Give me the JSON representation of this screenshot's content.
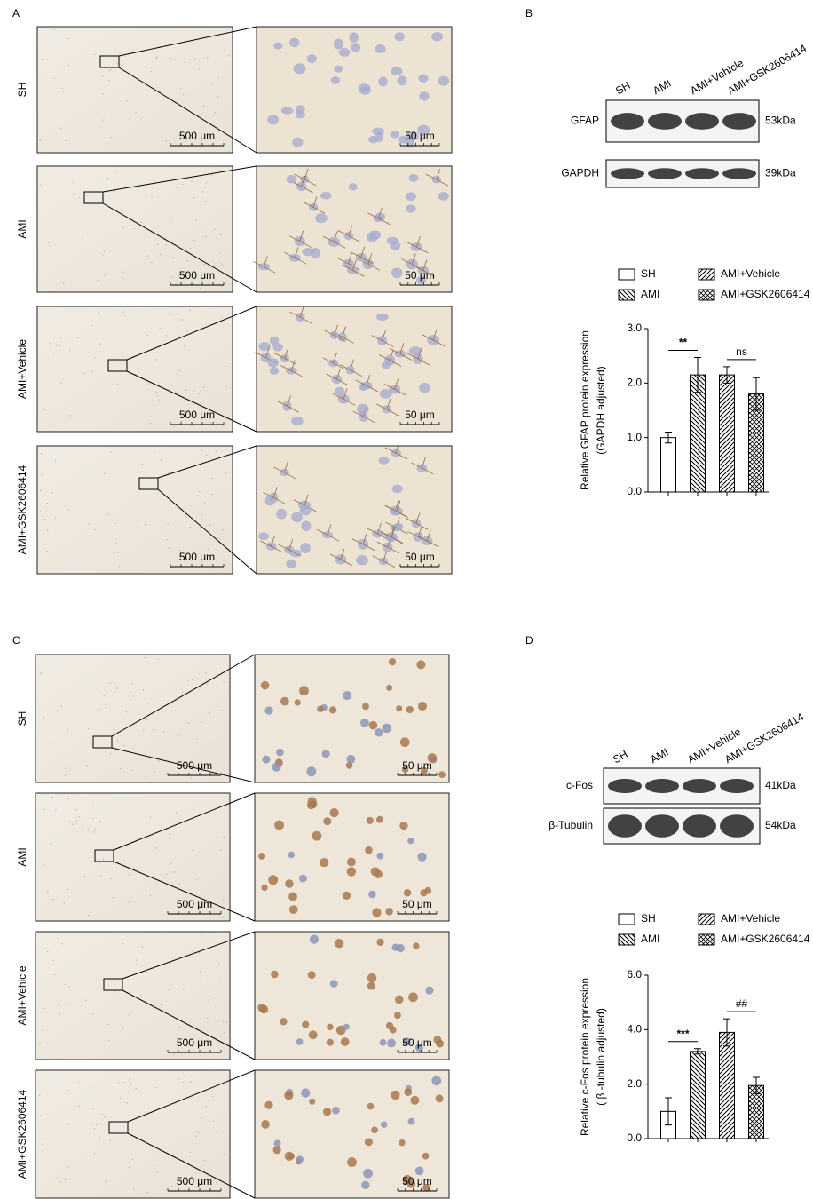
{
  "panel_labels": [
    "A",
    "B",
    "C",
    "D"
  ],
  "histology": [
    {
      "rows": [
        "SH",
        "AMI",
        "AMI+Vehicle",
        "AMI+GSK2606414"
      ],
      "low_scale": "500 μm",
      "high_scale": "50 μm"
    },
    {
      "rows": [
        "SH",
        "AMI",
        "AMI+Vehicle",
        "AMI+GSK2606414"
      ],
      "low_scale": "500 μm",
      "high_scale": "50 μm"
    }
  ],
  "blots": [
    {
      "lanes": [
        "SH",
        "AMI",
        "AMI+Vehicle",
        "AMI+GSK2606414"
      ],
      "bands": [
        {
          "name": "GFAP",
          "size": "53kDa"
        },
        {
          "name": "GAPDH",
          "size": "39kDa"
        }
      ]
    },
    {
      "lanes": [
        "SH",
        "AMI",
        "AMI+Vehicle",
        "AMI+GSK2606414"
      ],
      "bands": [
        {
          "name": "c-Fos",
          "size": "41kDa"
        },
        {
          "name": "β-Tubulin",
          "size": "54kDa"
        }
      ]
    }
  ],
  "chart_data": [
    {
      "type": "bar",
      "categories": [
        "SH",
        "AMI",
        "AMI+Vehicle",
        "AMI+GSK2606414"
      ],
      "values": [
        1.0,
        2.15,
        2.15,
        1.8
      ],
      "errors": [
        0.1,
        0.32,
        0.15,
        0.3
      ],
      "patterns": [
        "none",
        "back",
        "forward",
        "cross"
      ],
      "color": "#000000",
      "ylim": [
        0,
        3
      ],
      "yticks": [
        {
          "value": 0,
          "label": "0.0"
        },
        {
          "value": 1,
          "label": "1.0"
        },
        {
          "value": 2,
          "label": "2.0"
        },
        {
          "value": 3,
          "label": "3.0"
        }
      ],
      "y_label": [
        "Relative GFAP protein expression",
        "(GAPDH adjusted)"
      ],
      "annotations": [
        "**",
        "ns"
      ]
    },
    {
      "type": "bar",
      "categories": [
        "SH",
        "AMI",
        "AMI+Vehicle",
        "AMI+GSK2606414"
      ],
      "values": [
        1.0,
        3.2,
        3.9,
        1.95
      ],
      "errors": [
        0.5,
        0.1,
        0.5,
        0.3
      ],
      "patterns": [
        "none",
        "back",
        "forward",
        "cross"
      ],
      "color": "#000000",
      "ylim": [
        0,
        6
      ],
      "yticks": [
        {
          "value": 0,
          "label": "0.0"
        },
        {
          "value": 2,
          "label": "2.0"
        },
        {
          "value": 4,
          "label": "4.0"
        },
        {
          "value": 6,
          "label": "6.0"
        }
      ],
      "y_label": [
        "Relative c-Fos protein expression",
        "( β -tubulin adjusted)"
      ],
      "annotations": [
        "***",
        "##"
      ]
    }
  ]
}
